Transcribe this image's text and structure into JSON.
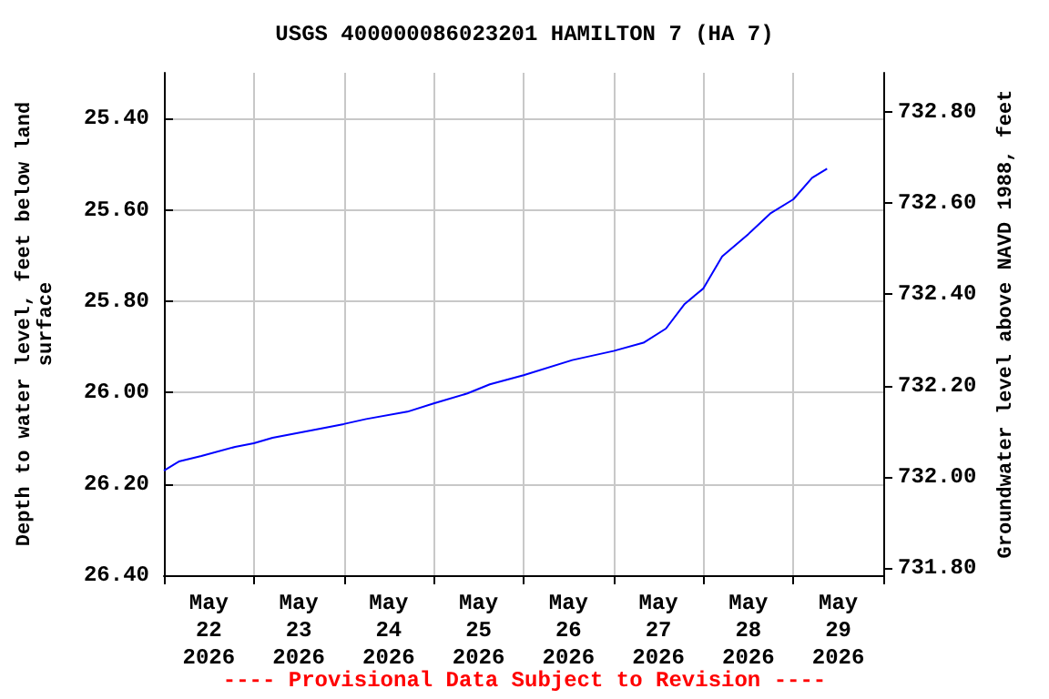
{
  "chart_data": {
    "type": "line",
    "title": "USGS 400000086023201 HAMILTON 7 (HA 7)",
    "ylabel": "Depth to water level, feet below land surface",
    "y2label": "Groundwater level above NAVD 1988, feet",
    "annotations": [
      "---- Provisional Data Subject to Revision ----"
    ],
    "x": [
      "2026-05-22T00:00",
      "2026-05-22T04:00",
      "2026-05-22T10:00",
      "2026-05-22T19:00",
      "2026-05-23T00:00",
      "2026-05-23T05:00",
      "2026-05-23T19:00",
      "2026-05-24T00:00",
      "2026-05-24T06:00",
      "2026-05-24T17:00",
      "2026-05-25T00:00",
      "2026-05-25T09:00",
      "2026-05-25T15:00",
      "2026-05-26T00:00",
      "2026-05-26T13:00",
      "2026-05-27T00:00",
      "2026-05-27T08:00",
      "2026-05-27T14:00",
      "2026-05-27T19:00",
      "2026-05-28T00:00",
      "2026-05-28T05:00",
      "2026-05-28T12:00",
      "2026-05-28T18:00",
      "2026-05-29T00:00",
      "2026-05-29T05:00",
      "2026-05-29T09:00"
    ],
    "series": [
      {
        "color": "#0000ff",
        "values": [
          26.171,
          26.151,
          26.139,
          26.119,
          26.111,
          26.099,
          26.077,
          26.069,
          26.058,
          26.042,
          26.024,
          26.002,
          25.982,
          25.962,
          25.929,
          25.909,
          25.891,
          25.86,
          25.806,
          25.772,
          25.702,
          25.653,
          25.607,
          25.577,
          25.53,
          25.51
        ]
      }
    ],
    "xlim": [
      "2026-05-22T00:00",
      "2026-05-30T00:00"
    ],
    "xticks": [
      {
        "value": "2026-05-22T00:00",
        "label": null
      },
      {
        "value": "2026-05-22T12:00",
        "label": "May\n22\n2026"
      },
      {
        "value": "2026-05-23T00:00",
        "label": null
      },
      {
        "value": "2026-05-23T12:00",
        "label": "May\n23\n2026"
      },
      {
        "value": "2026-05-24T00:00",
        "label": null
      },
      {
        "value": "2026-05-24T12:00",
        "label": "May\n24\n2026"
      },
      {
        "value": "2026-05-25T00:00",
        "label": null
      },
      {
        "value": "2026-05-25T12:00",
        "label": "May\n25\n2026"
      },
      {
        "value": "2026-05-26T00:00",
        "label": null
      },
      {
        "value": "2026-05-26T12:00",
        "label": "May\n26\n2026"
      },
      {
        "value": "2026-05-27T00:00",
        "label": null
      },
      {
        "value": "2026-05-27T12:00",
        "label": "May\n27\n2026"
      },
      {
        "value": "2026-05-28T00:00",
        "label": null
      },
      {
        "value": "2026-05-28T12:00",
        "label": "May\n28\n2026"
      },
      {
        "value": "2026-05-29T00:00",
        "label": null
      },
      {
        "value": "2026-05-29T12:00",
        "label": "May\n29\n2026"
      },
      {
        "value": "2026-05-30T00:00",
        "label": null
      }
    ],
    "ylim": [
      26.4,
      25.3
    ],
    "yticks": [
      {
        "value": 25.4,
        "label": "25.40"
      },
      {
        "value": 25.6,
        "label": "25.60"
      },
      {
        "value": 25.8,
        "label": "25.80"
      },
      {
        "value": 26.0,
        "label": "26.00"
      },
      {
        "value": 26.2,
        "label": "26.20"
      },
      {
        "value": 26.4,
        "label": "26.40"
      }
    ],
    "y2lim": [
      731.785,
      732.885
    ],
    "y2ticks": [
      {
        "value": 731.8,
        "label": "731.80"
      },
      {
        "value": 732.0,
        "label": "732.00"
      },
      {
        "value": 732.2,
        "label": "732.20"
      },
      {
        "value": 732.4,
        "label": "732.40"
      },
      {
        "value": 732.6,
        "label": "732.60"
      },
      {
        "value": 732.8,
        "label": "732.80"
      }
    ],
    "grid": true,
    "marker": "none",
    "line_style": "solid"
  }
}
